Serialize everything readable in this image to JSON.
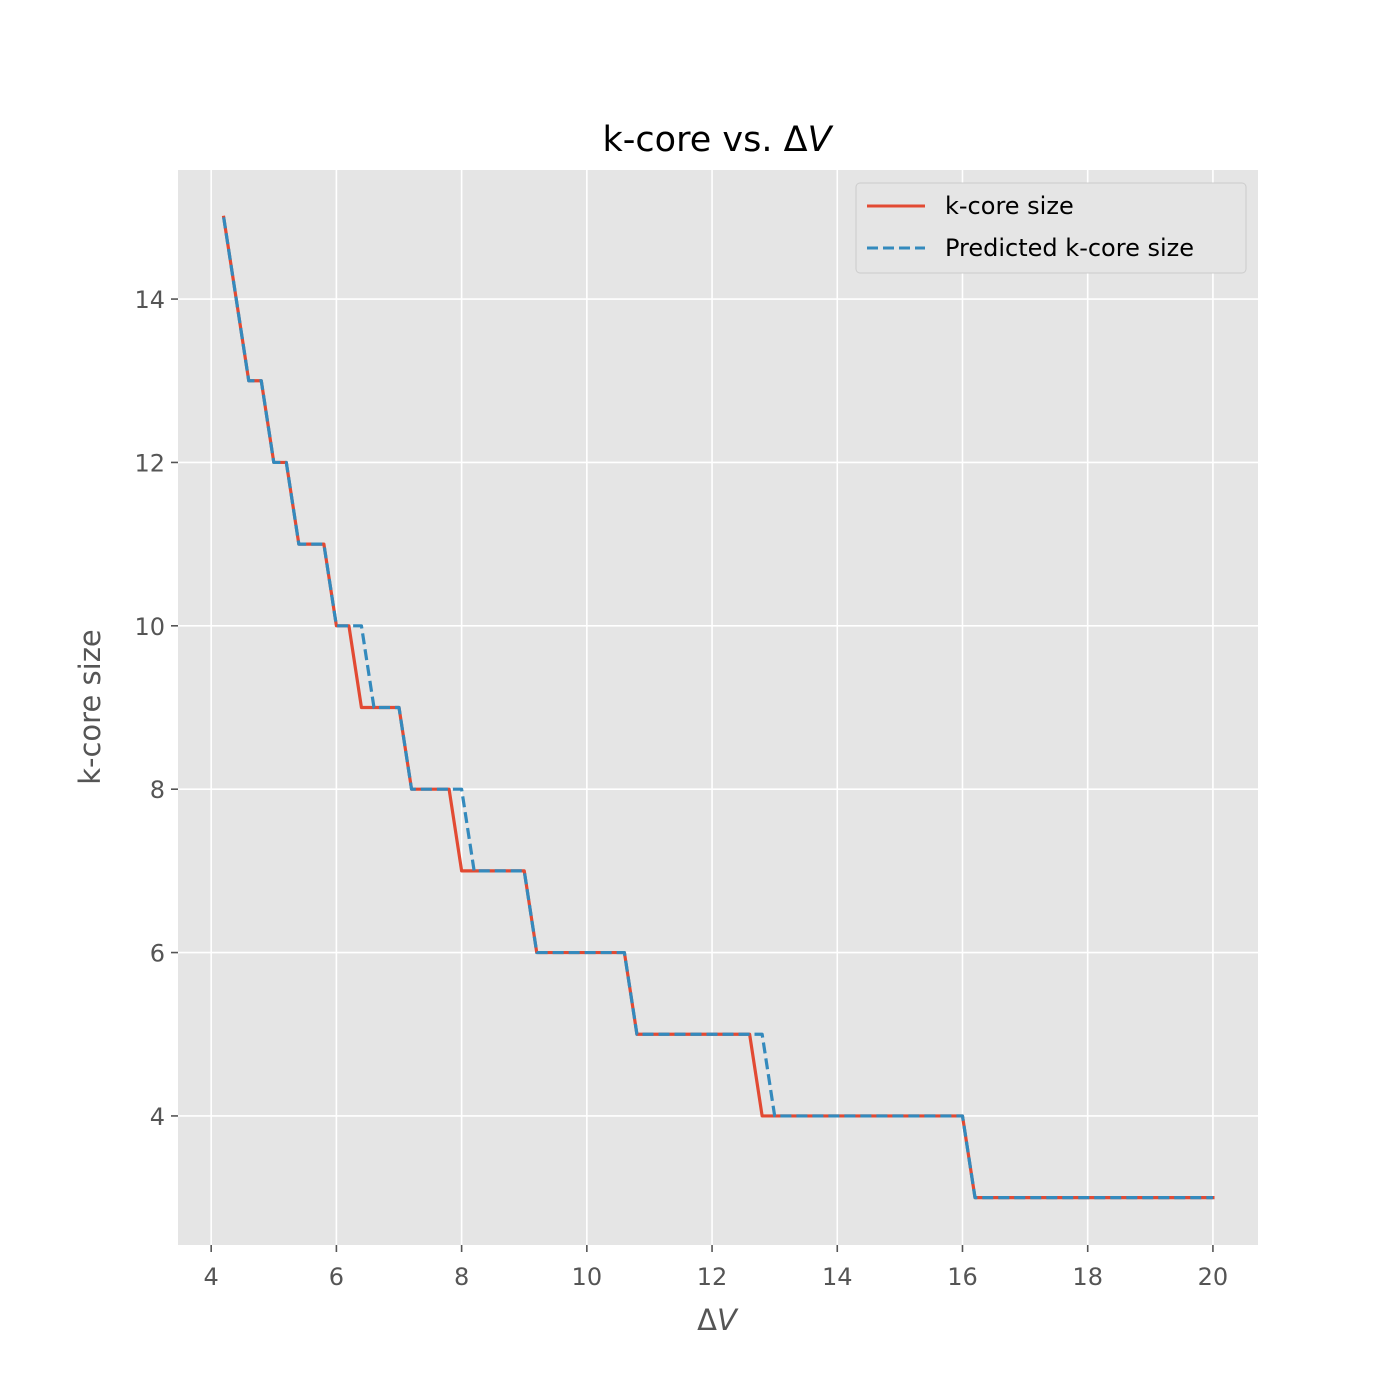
{
  "chart_data": {
    "type": "line",
    "title": "k-core vs. ΔV",
    "xlabel": "ΔV",
    "ylabel": "k-core size",
    "xlim": [
      3.47,
      20.72
    ],
    "ylim": [
      2.42,
      15.58
    ],
    "x_ticks": [
      "4",
      "6",
      "8",
      "10",
      "12",
      "14",
      "16",
      "18",
      "20"
    ],
    "y_ticks": [
      "4",
      "6",
      "8",
      "10",
      "12",
      "14"
    ],
    "grid": true,
    "legend_position": "top-right",
    "series": [
      {
        "name": "k-core size",
        "color": "#E24A33",
        "dash": "solid",
        "points": [
          [
            4.2,
            15
          ],
          [
            4.6,
            13
          ],
          [
            4.8,
            13
          ],
          [
            5.0,
            12
          ],
          [
            5.2,
            12
          ],
          [
            5.4,
            11
          ],
          [
            5.8,
            11
          ],
          [
            6.0,
            10
          ],
          [
            6.2,
            10
          ],
          [
            6.4,
            9
          ],
          [
            7.0,
            9
          ],
          [
            7.2,
            8
          ],
          [
            7.8,
            8
          ],
          [
            8.0,
            7
          ],
          [
            9.0,
            7
          ],
          [
            9.2,
            6
          ],
          [
            10.6,
            6
          ],
          [
            10.8,
            5
          ],
          [
            12.6,
            5
          ],
          [
            12.8,
            4
          ],
          [
            16.0,
            4
          ],
          [
            16.2,
            3
          ],
          [
            20.0,
            3
          ]
        ]
      },
      {
        "name": "Predicted k-core size",
        "color": "#348ABD",
        "dash": "dashed",
        "points": [
          [
            4.2,
            15
          ],
          [
            4.6,
            13
          ],
          [
            4.8,
            13
          ],
          [
            5.0,
            12
          ],
          [
            5.2,
            12
          ],
          [
            5.4,
            11
          ],
          [
            5.8,
            11
          ],
          [
            6.0,
            10
          ],
          [
            6.4,
            10
          ],
          [
            6.6,
            9
          ],
          [
            7.0,
            9
          ],
          [
            7.2,
            8
          ],
          [
            8.0,
            8
          ],
          [
            8.2,
            7
          ],
          [
            9.0,
            7
          ],
          [
            9.2,
            6
          ],
          [
            10.6,
            6
          ],
          [
            10.8,
            5
          ],
          [
            12.8,
            5
          ],
          [
            13.0,
            4
          ],
          [
            16.0,
            4
          ],
          [
            16.2,
            3
          ],
          [
            20.0,
            3
          ]
        ]
      }
    ]
  }
}
